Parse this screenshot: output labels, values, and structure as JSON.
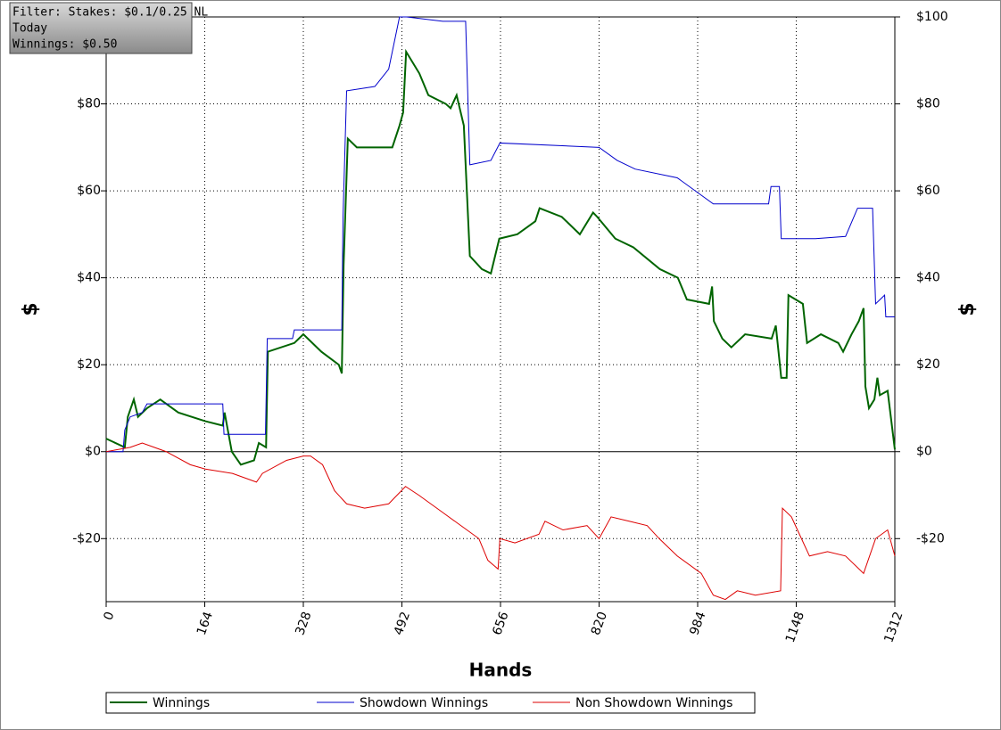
{
  "info": {
    "filter": "Filter: Stakes: $0.1/0.25 NL",
    "period": "Today",
    "winnings": "Winnings: $0.50"
  },
  "chart_data": {
    "type": "line",
    "xlabel": "Hands",
    "ylabel": "$",
    "y2label": "$",
    "xlim": [
      0,
      1312
    ],
    "xticks": [
      0,
      164,
      328,
      492,
      656,
      820,
      984,
      1148,
      1312
    ],
    "ylim": [
      -34.5,
      100
    ],
    "yticks": [
      {
        "value": -20,
        "label": "-$20"
      },
      {
        "value": 0,
        "label": "$0"
      },
      {
        "value": 20,
        "label": "$20"
      },
      {
        "value": 40,
        "label": "$40"
      },
      {
        "value": 60,
        "label": "$60"
      },
      {
        "value": 80,
        "label": "$80"
      }
    ],
    "y2lim": [
      -34.5,
      100
    ],
    "y2ticks": [
      {
        "value": -20,
        "label": "-$20"
      },
      {
        "value": 0,
        "label": "$0"
      },
      {
        "value": 20,
        "label": "$20"
      },
      {
        "value": 40,
        "label": "$40"
      },
      {
        "value": 60,
        "label": "$60"
      },
      {
        "value": 80,
        "label": "$80"
      },
      {
        "value": 100,
        "label": "$100"
      }
    ],
    "grid": true,
    "series": [
      {
        "name": "Winnings",
        "color": "#006400",
        "width": 2,
        "x": [
          0,
          31,
          36,
          46,
          53,
          68,
          90,
          120,
          165,
          194,
          197,
          209,
          224,
          246,
          254,
          266,
          269,
          313,
          328,
          358,
          387,
          392,
          395,
          402,
          417,
          447,
          476,
          488,
          494,
          499,
          521,
          536,
          565,
          573,
          583,
          595,
          605,
          625,
          640,
          654,
          684,
          714,
          721,
          758,
          788,
          810,
          817,
          847,
          877,
          921,
          951,
          966,
          1003,
          1008,
          1011,
          1025,
          1040,
          1063,
          1107,
          1114,
          1123,
          1132,
          1135,
          1159,
          1166,
          1189,
          1218,
          1226,
          1240,
          1252,
          1260,
          1263,
          1269,
          1278,
          1283,
          1287,
          1300,
          1312
        ],
        "values": [
          3,
          1,
          8,
          12,
          8,
          10,
          12,
          9,
          7,
          6,
          9,
          0,
          -3,
          -2,
          2,
          1,
          23,
          25,
          27,
          23,
          20,
          18,
          43,
          72,
          70,
          70,
          70,
          75,
          78,
          92,
          87,
          82,
          80,
          79,
          82,
          75,
          45,
          42,
          41,
          49,
          50,
          53,
          56,
          54,
          50,
          55,
          54,
          49,
          47,
          42,
          40,
          35,
          34,
          38,
          30,
          26,
          24,
          27,
          26,
          29,
          17,
          17,
          36,
          34,
          25,
          27,
          25,
          23,
          27,
          30,
          33,
          15,
          10,
          12,
          17,
          13,
          14,
          0.5
        ]
      },
      {
        "name": "Showdown Winnings",
        "color": "#0000cc",
        "width": 1,
        "x": [
          0,
          28,
          31,
          40,
          60,
          68,
          194,
          196,
          265,
          268,
          310,
          313,
          392,
          394,
          400,
          447,
          470,
          488,
          500,
          560,
          598,
          605,
          640,
          655,
          820,
          850,
          880,
          950,
          1010,
          1102,
          1106,
          1120,
          1123,
          1180,
          1230,
          1250,
          1275,
          1280,
          1295,
          1297,
          1312
        ],
        "values": [
          0,
          0,
          5,
          8,
          9,
          11,
          11,
          4,
          4,
          26,
          26,
          28,
          28,
          54,
          83,
          84,
          88,
          100,
          100,
          99,
          99,
          66,
          67,
          71,
          70,
          67,
          65,
          63,
          57,
          57,
          61,
          61,
          49,
          49,
          49.5,
          56,
          56,
          34,
          36,
          31,
          31
        ]
      },
      {
        "name": "Non Showdown Winnings",
        "color": "#dd0000",
        "width": 1,
        "x": [
          0,
          40,
          60,
          80,
          100,
          140,
          165,
          210,
          230,
          250,
          260,
          300,
          328,
          340,
          360,
          380,
          400,
          430,
          470,
          498,
          520,
          560,
          580,
          600,
          620,
          635,
          652,
          655,
          680,
          720,
          730,
          760,
          800,
          820,
          840,
          870,
          900,
          920,
          950,
          990,
          1010,
          1030,
          1050,
          1080,
          1122,
          1125,
          1140,
          1170,
          1200,
          1230,
          1260,
          1280,
          1300,
          1312
        ],
        "values": [
          0,
          1,
          2,
          1,
          0,
          -3,
          -4,
          -5,
          -6,
          -7,
          -5,
          -2,
          -1,
          -1,
          -3,
          -9,
          -12,
          -13,
          -12,
          -8,
          -10,
          -14,
          -16,
          -18,
          -20,
          -25,
          -27,
          -20,
          -21,
          -19,
          -16,
          -18,
          -17,
          -20,
          -15,
          -16,
          -17,
          -20,
          -24,
          -28,
          -33,
          -34,
          -32,
          -33,
          -32,
          -13,
          -15,
          -24,
          -23,
          -24,
          -28,
          -20,
          -18,
          -24
        ]
      }
    ],
    "legend": "bottom"
  }
}
